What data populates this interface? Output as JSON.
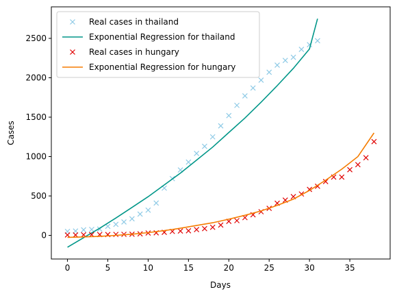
{
  "chart_data": {
    "type": "line",
    "title": "",
    "xlabel": "Days",
    "ylabel": "Cases",
    "xlim": [
      -2,
      40
    ],
    "ylim": [
      -300,
      2900
    ],
    "xticks": [
      0,
      5,
      10,
      15,
      20,
      25,
      30,
      35
    ],
    "yticks": [
      0,
      500,
      1000,
      1500,
      2000,
      2500
    ],
    "grid": false,
    "legend_position": "top-left",
    "series": [
      {
        "name": "Real cases in thailand",
        "kind": "scatter",
        "marker": "x",
        "color": "#8ecae6",
        "x": [
          0,
          1,
          2,
          3,
          4,
          5,
          6,
          7,
          8,
          9,
          10,
          11,
          12,
          13,
          14,
          15,
          16,
          17,
          18,
          19,
          20,
          21,
          22,
          23,
          24,
          25,
          26,
          27,
          28,
          29,
          30,
          31
        ],
        "y": [
          50,
          55,
          70,
          75,
          80,
          115,
          140,
          170,
          210,
          270,
          320,
          410,
          600,
          720,
          830,
          930,
          1040,
          1130,
          1250,
          1390,
          1520,
          1650,
          1770,
          1870,
          1970,
          2070,
          2160,
          2220,
          2260,
          2360,
          2420,
          2470
        ]
      },
      {
        "name": "Exponential Regression for thailand",
        "kind": "line",
        "color": "#009688",
        "x": [
          0,
          2,
          4,
          6,
          8,
          10,
          12,
          14,
          16,
          18,
          20,
          22,
          24,
          26,
          28,
          30,
          31
        ],
        "y": [
          -150,
          -30,
          90,
          220,
          355,
          490,
          640,
          790,
          955,
          1120,
          1305,
          1490,
          1690,
          1900,
          2120,
          2365,
          2750
        ]
      },
      {
        "name": "Real cases in hungary",
        "kind": "scatter",
        "marker": "x",
        "color": "#e00000",
        "x": [
          0,
          1,
          2,
          3,
          4,
          5,
          6,
          7,
          8,
          9,
          10,
          11,
          12,
          13,
          14,
          15,
          16,
          17,
          18,
          19,
          20,
          21,
          22,
          23,
          24,
          25,
          26,
          27,
          28,
          29,
          30,
          31,
          32,
          33,
          34,
          35,
          36,
          37,
          38
        ],
        "y": [
          5,
          5,
          7,
          9,
          10,
          10,
          12,
          13,
          15,
          19,
          30,
          32,
          39,
          50,
          55,
          58,
          73,
          85,
          103,
          131,
          178,
          187,
          225,
          261,
          300,
          343,
          408,
          447,
          492,
          525,
          583,
          623,
          683,
          740,
          740,
          833,
          897,
          985,
          1190
        ]
      },
      {
        "name": "Exponential Regression for hungary",
        "kind": "line",
        "color": "#f57c00",
        "x": [
          0,
          2,
          4,
          6,
          8,
          10,
          12,
          14,
          16,
          18,
          20,
          22,
          24,
          26,
          28,
          30,
          32,
          34,
          36,
          38
        ],
        "y": [
          -25,
          -20,
          -12,
          0,
          15,
          35,
          60,
          90,
          125,
          160,
          205,
          255,
          310,
          380,
          460,
          570,
          700,
          840,
          1000,
          1300
        ]
      }
    ]
  }
}
